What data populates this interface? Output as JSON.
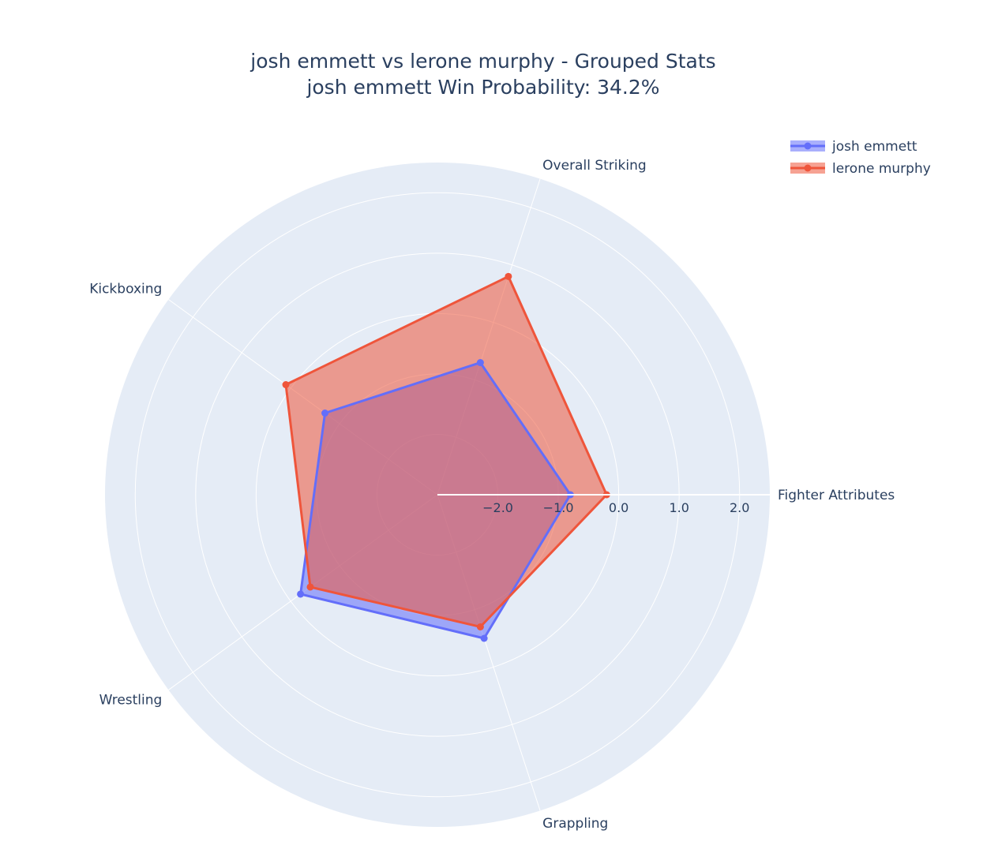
{
  "chart_data": {
    "type": "radar",
    "title": "josh emmett vs lerone murphy - Grouped Stats",
    "subtitle": "josh emmett Win Probability: 34.2%",
    "categories": [
      "Fighter Attributes",
      "Overall Striking",
      "Kickboxing",
      "Wrestling",
      "Grappling"
    ],
    "radial_ticks": [
      "−2.0",
      "−1.0",
      "0.0",
      "1.0",
      "2.0"
    ],
    "radial_tick_values": [
      -2,
      -1,
      0,
      1,
      2
    ],
    "radial_range": [
      -3,
      2.5
    ],
    "grid": true,
    "legend_position": "top-right",
    "series": [
      {
        "name": "josh emmett",
        "values": [
          -0.8,
          -0.7,
          -0.7,
          -0.2,
          -0.5
        ],
        "color": "#636efa"
      },
      {
        "name": "lerone murphy",
        "values": [
          -0.2,
          0.8,
          0.1,
          -0.4,
          -0.7
        ],
        "color": "#ef553b"
      }
    ]
  }
}
